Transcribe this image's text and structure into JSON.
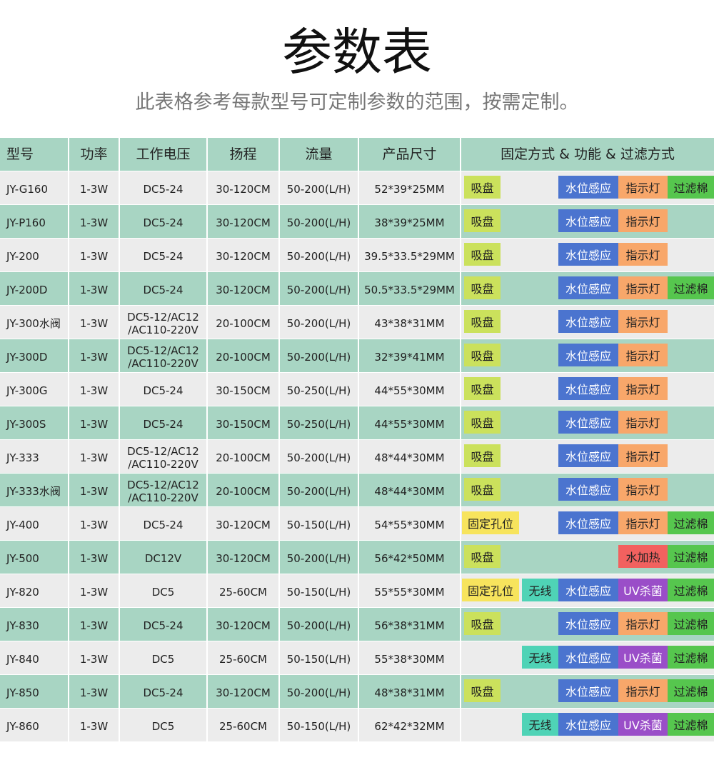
{
  "header": {
    "title": "参数表",
    "subtitle": "此表格参考每款型号可定制参数的范围，按需定制。"
  },
  "table": {
    "columns": [
      "型号",
      "功率",
      "工作电压",
      "扬程",
      "流量",
      "产品尺寸",
      "固定方式 & 功能 & 过滤方式"
    ],
    "rows": [
      {
        "cells": [
          "JY-G160",
          "1-3W",
          "DC5-24",
          "30-120CM",
          "50-200(L/H)",
          "52*39*25MM"
        ],
        "tags": {
          "mount": {
            "text": "吸盘",
            "color": "#cbe15c"
          },
          "sensor": {
            "text": "水位感应",
            "color": "#4b74cf"
          },
          "func": {
            "text": "指示灯",
            "color": "#f8a76a"
          },
          "filter": {
            "text": "过滤棉",
            "color": "#56c64e"
          }
        }
      },
      {
        "cells": [
          "JY-P160",
          "1-3W",
          "DC5-24",
          "30-120CM",
          "50-200(L/H)",
          "38*39*25MM"
        ],
        "tags": {
          "mount": {
            "text": "吸盘",
            "color": "#cbe15c"
          },
          "sensor": {
            "text": "水位感应",
            "color": "#4b74cf"
          },
          "func": {
            "text": "指示灯",
            "color": "#f8a76a"
          }
        }
      },
      {
        "cells": [
          "JY-200",
          "1-3W",
          "DC5-24",
          "30-120CM",
          "50-200(L/H)",
          "39.5*33.5*29MM"
        ],
        "tags": {
          "mount": {
            "text": "吸盘",
            "color": "#cbe15c"
          },
          "sensor": {
            "text": "水位感应",
            "color": "#4b74cf"
          },
          "func": {
            "text": "指示灯",
            "color": "#f8a76a"
          }
        }
      },
      {
        "cells": [
          "JY-200D",
          "1-3W",
          "DC5-24",
          "30-120CM",
          "50-200(L/H)",
          "50.5*33.5*29MM"
        ],
        "tags": {
          "mount": {
            "text": "吸盘",
            "color": "#cbe15c"
          },
          "sensor": {
            "text": "水位感应",
            "color": "#4b74cf"
          },
          "func": {
            "text": "指示灯",
            "color": "#f8a76a"
          },
          "filter": {
            "text": "过滤棉",
            "color": "#56c64e"
          }
        }
      },
      {
        "cells": [
          "JY-300水阀",
          "1-3W",
          "DC5-12/AC12\n/AC110-220V",
          "20-100CM",
          "50-200(L/H)",
          "43*38*31MM"
        ],
        "tags": {
          "mount": {
            "text": "吸盘",
            "color": "#cbe15c"
          },
          "sensor": {
            "text": "水位感应",
            "color": "#4b74cf"
          },
          "func": {
            "text": "指示灯",
            "color": "#f8a76a"
          }
        }
      },
      {
        "cells": [
          "JY-300D",
          "1-3W",
          "DC5-12/AC12\n/AC110-220V",
          "20-100CM",
          "50-200(L/H)",
          "32*39*41MM"
        ],
        "tags": {
          "mount": {
            "text": "吸盘",
            "color": "#cbe15c"
          },
          "sensor": {
            "text": "水位感应",
            "color": "#4b74cf"
          },
          "func": {
            "text": "指示灯",
            "color": "#f8a76a"
          }
        }
      },
      {
        "cells": [
          "JY-300G",
          "1-3W",
          "DC5-24",
          "30-150CM",
          "50-250(L/H)",
          "44*55*30MM"
        ],
        "tags": {
          "mount": {
            "text": "吸盘",
            "color": "#cbe15c"
          },
          "sensor": {
            "text": "水位感应",
            "color": "#4b74cf"
          },
          "func": {
            "text": "指示灯",
            "color": "#f8a76a"
          }
        }
      },
      {
        "cells": [
          "JY-300S",
          "1-3W",
          "DC5-24",
          "30-150CM",
          "50-250(L/H)",
          "44*55*30MM"
        ],
        "tags": {
          "mount": {
            "text": "吸盘",
            "color": "#cbe15c"
          },
          "sensor": {
            "text": "水位感应",
            "color": "#4b74cf"
          },
          "func": {
            "text": "指示灯",
            "color": "#f8a76a"
          }
        }
      },
      {
        "cells": [
          "JY-333",
          "1-3W",
          "DC5-12/AC12\n/AC110-220V",
          "20-100CM",
          "50-200(L/H)",
          "48*44*30MM"
        ],
        "tags": {
          "mount": {
            "text": "吸盘",
            "color": "#cbe15c"
          },
          "sensor": {
            "text": "水位感应",
            "color": "#4b74cf"
          },
          "func": {
            "text": "指示灯",
            "color": "#f8a76a"
          }
        }
      },
      {
        "cells": [
          "JY-333水阀",
          "1-3W",
          "DC5-12/AC12\n/AC110-220V",
          "20-100CM",
          "50-200(L/H)",
          "48*44*30MM"
        ],
        "tags": {
          "mount": {
            "text": "吸盘",
            "color": "#cbe15c"
          },
          "sensor": {
            "text": "水位感应",
            "color": "#4b74cf"
          },
          "func": {
            "text": "指示灯",
            "color": "#f8a76a"
          }
        }
      },
      {
        "cells": [
          "JY-400",
          "1-3W",
          "DC5-24",
          "30-120CM",
          "50-150(L/H)",
          "54*55*30MM"
        ],
        "tags": {
          "mount": {
            "text": "固定孔位",
            "color": "#f7e45d"
          },
          "sensor": {
            "text": "水位感应",
            "color": "#4b74cf"
          },
          "func": {
            "text": "指示灯",
            "color": "#f8a76a"
          },
          "filter": {
            "text": "过滤棉",
            "color": "#56c64e"
          }
        }
      },
      {
        "cells": [
          "JY-500",
          "1-3W",
          "DC12V",
          "30-120CM",
          "50-200(L/H)",
          "56*42*50MM"
        ],
        "tags": {
          "mount": {
            "text": "吸盘",
            "color": "#cbe15c"
          },
          "func": {
            "text": "水加热",
            "color": "#f2615f"
          },
          "filter": {
            "text": "过滤棉",
            "color": "#56c64e"
          }
        }
      },
      {
        "cells": [
          "JY-820",
          "1-3W",
          "DC5",
          "25-60CM",
          "50-150(L/H)",
          "55*55*30MM"
        ],
        "tags": {
          "mount": {
            "text": "固定孔位",
            "color": "#f7e45d"
          },
          "wireless": {
            "text": "无线",
            "color": "#4fd3b6"
          },
          "sensor": {
            "text": "水位感应",
            "color": "#4b74cf"
          },
          "func": {
            "text": "UV杀菌",
            "color": "#9a4ec8"
          },
          "filter": {
            "text": "过滤棉",
            "color": "#56c64e"
          }
        }
      },
      {
        "cells": [
          "JY-830",
          "1-3W",
          "DC5-24",
          "30-120CM",
          "50-200(L/H)",
          "56*38*31MM"
        ],
        "tags": {
          "mount": {
            "text": "吸盘",
            "color": "#cbe15c"
          },
          "sensor": {
            "text": "水位感应",
            "color": "#4b74cf"
          },
          "func": {
            "text": "指示灯",
            "color": "#f8a76a"
          },
          "filter": {
            "text": "过滤棉",
            "color": "#56c64e"
          }
        }
      },
      {
        "cells": [
          "JY-840",
          "1-3W",
          "DC5",
          "25-60CM",
          "50-150(L/H)",
          "55*38*30MM"
        ],
        "tags": {
          "wireless": {
            "text": "无线",
            "color": "#4fd3b6"
          },
          "sensor": {
            "text": "水位感应",
            "color": "#4b74cf"
          },
          "func": {
            "text": "UV杀菌",
            "color": "#9a4ec8"
          },
          "filter": {
            "text": "过滤棉",
            "color": "#56c64e"
          }
        }
      },
      {
        "cells": [
          "JY-850",
          "1-3W",
          "DC5-24",
          "30-120CM",
          "50-200(L/H)",
          "48*38*31MM"
        ],
        "tags": {
          "mount": {
            "text": "吸盘",
            "color": "#cbe15c"
          },
          "sensor": {
            "text": "水位感应",
            "color": "#4b74cf"
          },
          "func": {
            "text": "指示灯",
            "color": "#f8a76a"
          },
          "filter": {
            "text": "过滤棉",
            "color": "#56c64e"
          }
        }
      },
      {
        "cells": [
          "JY-860",
          "1-3W",
          "DC5",
          "25-60CM",
          "50-150(L/H)",
          "62*42*32MM"
        ],
        "tags": {
          "wireless": {
            "text": "无线",
            "color": "#4fd3b6"
          },
          "sensor": {
            "text": "水位感应",
            "color": "#4b74cf"
          },
          "func": {
            "text": "UV杀菌",
            "color": "#9a4ec8"
          },
          "filter": {
            "text": "过滤棉",
            "color": "#56c64e"
          }
        }
      }
    ]
  }
}
